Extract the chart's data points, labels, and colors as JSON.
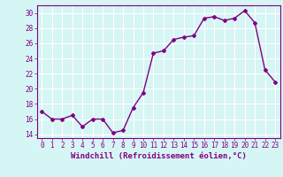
{
  "x": [
    0,
    1,
    2,
    3,
    4,
    5,
    6,
    7,
    8,
    9,
    10,
    11,
    12,
    13,
    14,
    15,
    16,
    17,
    18,
    19,
    20,
    21,
    22,
    23
  ],
  "y": [
    17.0,
    16.0,
    16.0,
    16.5,
    15.0,
    16.0,
    16.0,
    14.2,
    14.5,
    17.5,
    19.5,
    24.7,
    25.0,
    26.5,
    26.8,
    27.0,
    29.3,
    29.5,
    29.0,
    29.3,
    30.3,
    28.7,
    22.5,
    20.9
  ],
  "line_color": "#800080",
  "marker": "D",
  "marker_size": 2.0,
  "bg_color": "#d6f5f5",
  "grid_color": "#ffffff",
  "xlabel": "Windchill (Refroidissement éolien,°C)",
  "xlim": [
    -0.5,
    23.5
  ],
  "ylim": [
    13.5,
    31.0
  ],
  "yticks": [
    14,
    16,
    18,
    20,
    22,
    24,
    26,
    28,
    30
  ],
  "xticks": [
    0,
    1,
    2,
    3,
    4,
    5,
    6,
    7,
    8,
    9,
    10,
    11,
    12,
    13,
    14,
    15,
    16,
    17,
    18,
    19,
    20,
    21,
    22,
    23
  ],
  "tick_color": "#800080",
  "label_color": "#800080",
  "tick_fontsize": 5.5,
  "xlabel_fontsize": 6.5,
  "line_width": 1.0
}
